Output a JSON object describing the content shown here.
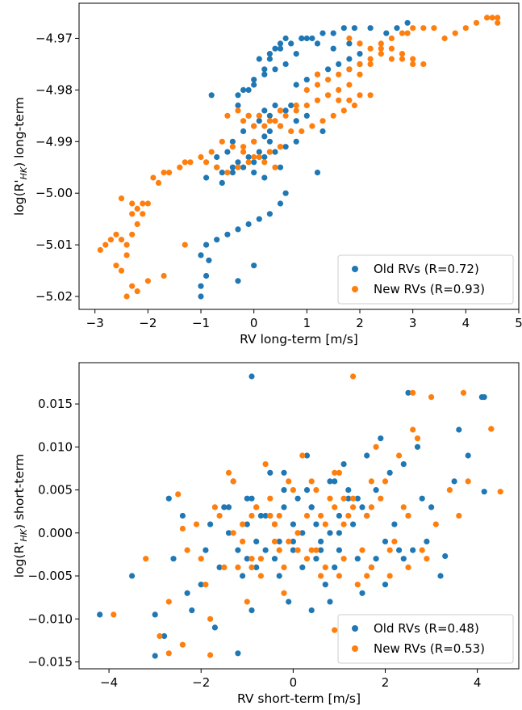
{
  "chart_data": [
    {
      "type": "scatter",
      "xlabel": "RV long-term [m/s]",
      "ylabel_main": "log(R'",
      "ylabel_sub": "HK",
      "ylabel_end": ") long-term",
      "xlim": [
        -3.3,
        5.0
      ],
      "ylim": [
        -5.0225,
        -4.9632
      ],
      "xticks": [
        -3,
        -2,
        -1,
        0,
        1,
        2,
        3,
        4,
        5
      ],
      "yticks": [
        -5.02,
        -5.01,
        -5.0,
        -4.99,
        -4.98,
        -4.97
      ],
      "ytick_decimals": 2,
      "legend": {
        "position": "lower-right"
      },
      "series": [
        {
          "name": "Old RVs (R=0.72)",
          "color": "#1f77b4",
          "x": [
            -1.0,
            -1.0,
            -0.9,
            -0.85,
            -0.9,
            -1.0,
            -0.7,
            -0.5,
            -0.3,
            -0.1,
            0.1,
            0.3,
            0.5,
            0.6,
            -0.2,
            0.0,
            0.2,
            0.4,
            0.6,
            0.8,
            -0.6,
            -0.4,
            -0.3,
            -0.1,
            0.0,
            0.2,
            0.3,
            0.5,
            -0.7,
            -0.9,
            -0.5,
            -0.4,
            -0.2,
            0.0,
            0.1,
            0.3,
            0.5,
            0.7,
            -0.1,
            0.1,
            0.2,
            0.4,
            0.6,
            0.8,
            1.0,
            1.3,
            -0.3,
            -0.2,
            0.0,
            0.2,
            0.4,
            0.6,
            0.8,
            0.5,
            0.6,
            0.4,
            0.3,
            0.2,
            0.0,
            -0.1,
            0.1,
            0.3,
            0.5,
            0.7,
            0.9,
            1.1,
            1.3,
            1.5,
            1.7,
            1.9,
            2.2,
            2.5,
            2.7,
            2.9,
            0.8,
            1.0,
            1.2,
            1.4,
            1.6,
            1.8,
            2.0,
            1.8,
            2.0,
            1.5,
            1.2,
            1.0,
            0.9,
            0.3,
            0.1,
            -0.4,
            -0.6,
            0.0,
            -0.8,
            -0.3,
            -0.7,
            0.5,
            0.2,
            1.2,
            0.0,
            -0.3,
            1.8
          ],
          "y": [
            -5.02,
            -5.018,
            -5.016,
            -5.013,
            -5.01,
            -5.012,
            -5.009,
            -5.008,
            -5.007,
            -5.006,
            -5.005,
            -5.004,
            -5.002,
            -5.0,
            -4.995,
            -4.994,
            -4.993,
            -4.992,
            -4.991,
            -4.99,
            -4.996,
            -4.995,
            -4.994,
            -4.993,
            -4.99,
            -4.989,
            -4.988,
            -4.987,
            -4.995,
            -4.997,
            -4.992,
            -4.99,
            -4.988,
            -4.987,
            -4.986,
            -4.985,
            -4.984,
            -4.983,
            -4.985,
            -4.985,
            -4.984,
            -4.983,
            -4.984,
            -4.986,
            -4.985,
            -4.988,
            -4.981,
            -4.98,
            -4.979,
            -4.977,
            -4.976,
            -4.975,
            -4.973,
            -4.971,
            -4.97,
            -4.972,
            -4.974,
            -4.976,
            -4.978,
            -4.98,
            -4.974,
            -4.973,
            -4.972,
            -4.971,
            -4.97,
            -4.97,
            -4.969,
            -4.969,
            -4.968,
            -4.968,
            -4.968,
            -4.969,
            -4.968,
            -4.967,
            -4.979,
            -4.978,
            -4.977,
            -4.976,
            -4.975,
            -4.974,
            -4.973,
            -4.976,
            -4.975,
            -4.972,
            -4.971,
            -4.97,
            -4.97,
            -4.99,
            -4.992,
            -4.996,
            -4.998,
            -4.996,
            -4.981,
            -4.983,
            -4.993,
            -4.995,
            -4.997,
            -4.996,
            -5.014,
            -5.017,
            -4.971
          ]
        },
        {
          "name": "New RVs (R=0.93)",
          "color": "#ff7f0e",
          "x": [
            -2.9,
            -2.8,
            -2.7,
            -2.6,
            -2.5,
            -2.4,
            -2.3,
            -2.2,
            -2.3,
            -2.2,
            -2.1,
            -2.0,
            -2.1,
            -2.3,
            -2.5,
            -2.4,
            -2.5,
            -2.3,
            -2.6,
            -2.4,
            -2.2,
            -2.0,
            -1.8,
            -1.9,
            -1.7,
            -1.4,
            -1.2,
            -1.0,
            -1.3,
            -1.6,
            -0.8,
            -0.6,
            -0.4,
            -0.2,
            0.0,
            0.2,
            0.4,
            -0.9,
            -0.7,
            -0.5,
            -0.3,
            -0.1,
            0.1,
            0.3,
            0.5,
            -0.5,
            -0.3,
            -0.1,
            0.1,
            0.3,
            0.5,
            0.7,
            0.9,
            1.1,
            1.3,
            1.5,
            1.7,
            1.9,
            -0.2,
            0.0,
            0.2,
            0.4,
            0.6,
            0.8,
            1.0,
            1.2,
            1.4,
            1.6,
            1.8,
            2.0,
            2.2,
            2.4,
            2.6,
            2.8,
            3.0,
            3.2,
            3.4,
            3.6,
            3.8,
            4.0,
            4.2,
            4.4,
            4.6,
            1.8,
            2.0,
            2.2,
            2.4,
            2.6,
            2.8,
            3.0,
            3.2,
            1.4,
            1.6,
            1.8,
            2.0,
            2.2,
            1.0,
            1.2,
            1.4,
            1.6,
            1.8,
            2.0,
            2.2,
            2.0,
            2.4,
            2.6,
            2.8,
            3.0,
            0.0,
            -0.2,
            0.3,
            0.5,
            -1.7,
            -1.3,
            4.6,
            4.5,
            0.8,
            0.5,
            1.2,
            2.9
          ],
          "y": [
            -5.011,
            -5.01,
            -5.009,
            -5.008,
            -5.009,
            -5.01,
            -5.008,
            -5.006,
            -5.004,
            -5.003,
            -5.002,
            -5.002,
            -5.004,
            -5.002,
            -5.001,
            -5.012,
            -5.015,
            -5.018,
            -5.014,
            -5.02,
            -5.019,
            -5.017,
            -4.998,
            -4.997,
            -4.996,
            -4.995,
            -4.994,
            -4.993,
            -4.994,
            -4.996,
            -4.992,
            -4.99,
            -4.991,
            -4.992,
            -4.993,
            -4.994,
            -4.995,
            -4.994,
            -4.995,
            -4.996,
            -4.995,
            -4.994,
            -4.993,
            -4.992,
            -4.991,
            -4.985,
            -4.984,
            -4.985,
            -4.985,
            -4.986,
            -4.987,
            -4.988,
            -4.988,
            -4.987,
            -4.986,
            -4.985,
            -4.984,
            -4.983,
            -4.986,
            -4.987,
            -4.987,
            -4.986,
            -4.985,
            -4.984,
            -4.983,
            -4.982,
            -4.981,
            -4.98,
            -4.979,
            -4.977,
            -4.975,
            -4.972,
            -4.97,
            -4.969,
            -4.968,
            -4.968,
            -4.968,
            -4.97,
            -4.969,
            -4.968,
            -4.967,
            -4.966,
            -4.966,
            -4.97,
            -4.971,
            -4.972,
            -4.973,
            -4.974,
            -4.974,
            -4.975,
            -4.975,
            -4.981,
            -4.982,
            -4.982,
            -4.981,
            -4.981,
            -4.98,
            -4.979,
            -4.978,
            -4.977,
            -4.976,
            -4.975,
            -4.974,
            -4.971,
            -4.971,
            -4.972,
            -4.973,
            -4.974,
            -4.99,
            -4.991,
            -4.992,
            -4.991,
            -5.016,
            -5.01,
            -4.967,
            -4.966,
            -4.983,
            -4.984,
            -4.977,
            -4.969
          ]
        }
      ]
    },
    {
      "type": "scatter",
      "xlabel": "RV short-term [m/s]",
      "ylabel_main": "log(R'",
      "ylabel_sub": "HK",
      "ylabel_end": ") short-term",
      "xlim": [
        -4.65,
        4.9
      ],
      "ylim": [
        -0.0158,
        0.0198
      ],
      "xticks": [
        -4,
        -2,
        0,
        2,
        4
      ],
      "yticks": [
        -0.015,
        -0.01,
        -0.005,
        0.0,
        0.005,
        0.01,
        0.015
      ],
      "ytick_decimals": 3,
      "legend": {
        "position": "lower-right"
      },
      "series": [
        {
          "name": "Old RVs (R=0.48)",
          "color": "#1f77b4",
          "x": [
            -4.2,
            -3.5,
            -3.0,
            -2.8,
            -2.6,
            -2.4,
            -2.2,
            -2.0,
            -1.8,
            -1.6,
            -1.4,
            -1.2,
            -1.0,
            -0.8,
            -0.6,
            -0.4,
            -0.2,
            0.0,
            0.2,
            0.4,
            0.6,
            0.8,
            1.0,
            1.2,
            1.4,
            1.6,
            1.8,
            2.0,
            2.2,
            2.4,
            2.6,
            2.8,
            3.0,
            3.2,
            3.5,
            3.8,
            4.1,
            -1.9,
            -1.5,
            -1.1,
            -0.7,
            -0.3,
            0.1,
            0.5,
            0.9,
            1.3,
            1.7,
            2.1,
            2.5,
            2.9,
            -2.3,
            -1.7,
            -1.3,
            -0.9,
            -0.5,
            -0.1,
            0.3,
            0.7,
            1.1,
            1.5,
            1.9,
            2.3,
            2.7,
            -1.0,
            -0.6,
            -0.2,
            0.2,
            0.6,
            1.0,
            1.4,
            1.8,
            -0.8,
            -0.4,
            0.0,
            0.4,
            0.8,
            1.2,
            -1.4,
            -1.0,
            -0.5,
            0.0,
            0.5,
            1.0,
            1.5,
            2.0,
            -0.9,
            -0.3,
            0.3,
            0.9,
            1.6,
            2.4,
            4.15,
            4.15,
            3.6,
            2.5,
            -1.2,
            -0.9,
            -3.0,
            -2.7,
            0.8,
            1.6,
            3.3,
            -0.2,
            0.4
          ],
          "y": [
            -0.0095,
            -0.005,
            -0.0143,
            -0.012,
            -0.003,
            0.002,
            -0.009,
            -0.006,
            0.001,
            -0.004,
            0.003,
            -0.002,
            0.004,
            -0.001,
            0.002,
            -0.003,
            0.005,
            0.001,
            -0.004,
            0.003,
            -0.002,
            0.006,
            0.0,
            0.004,
            -0.003,
            0.002,
            0.005,
            -0.006,
            0.001,
            0.008,
            -0.002,
            0.004,
            0.003,
            -0.005,
            0.006,
            0.009,
            0.0158,
            -0.002,
            0.003,
            -0.005,
            0.002,
            -0.001,
            0.004,
            -0.003,
            0.006,
            0.001,
            -0.004,
            0.007,
            0.002,
            -0.001,
            -0.007,
            -0.011,
            0.006,
            -0.009,
            0.007,
            -0.008,
            0.009,
            -0.006,
            0.008,
            -0.007,
            0.011,
            -0.002,
            0.01,
            0.001,
            -0.002,
            0.003,
            0.0,
            -0.001,
            0.002,
            0.004,
            -0.003,
            -0.004,
            0.001,
            -0.002,
            0.003,
            0.0,
            0.005,
            0.0,
            -0.003,
            0.002,
            -0.001,
            0.001,
            -0.002,
            0.003,
            -0.001,
            0.004,
            -0.005,
            0.005,
            -0.004,
            0.002,
            -0.003,
            0.0048,
            0.0158,
            0.012,
            0.0163,
            -0.014,
            0.0182,
            -0.0095,
            0.004,
            -0.008,
            0.009,
            -0.0027,
            0.007,
            -0.009
          ],
          "_note": "approximate"
        },
        {
          "name": "New RVs (R=0.53)",
          "color": "#ff7f0e",
          "x": [
            -3.9,
            -3.2,
            -2.9,
            -2.7,
            -2.5,
            -2.3,
            -2.1,
            -1.9,
            -1.7,
            -1.5,
            -1.3,
            -1.1,
            -0.9,
            -0.7,
            -0.5,
            -0.3,
            -0.1,
            0.1,
            0.3,
            0.5,
            0.7,
            0.9,
            1.1,
            1.3,
            1.5,
            1.7,
            1.9,
            2.1,
            2.3,
            2.5,
            2.7,
            2.9,
            3.1,
            3.4,
            3.8,
            4.3,
            4.5,
            -2.0,
            -1.6,
            -1.2,
            -0.8,
            -0.4,
            0.0,
            0.4,
            0.8,
            1.2,
            1.6,
            2.0,
            2.4,
            2.8,
            -2.4,
            -1.8,
            -1.4,
            -1.0,
            -0.6,
            -0.2,
            0.2,
            0.6,
            1.0,
            1.4,
            1.8,
            2.2,
            2.6,
            -1.1,
            -0.7,
            -0.3,
            0.1,
            0.5,
            0.9,
            1.3,
            1.7,
            -0.9,
            -0.5,
            -0.1,
            0.3,
            0.7,
            1.1,
            -1.3,
            -0.9,
            -0.4,
            0.1,
            0.6,
            1.1,
            1.6,
            2.1,
            -0.8,
            -0.2,
            0.4,
            1.0,
            1.7,
            2.5,
            4.3,
            3.7,
            2.6,
            1.3,
            -2.7,
            -2.4,
            -1.8,
            0.9,
            3.6,
            3.0
          ],
          "y": [
            -0.0095,
            -0.003,
            -0.012,
            -0.008,
            0.0045,
            -0.002,
            0.001,
            -0.006,
            0.003,
            -0.004,
            0.006,
            -0.001,
            0.002,
            -0.005,
            0.004,
            -0.002,
            0.006,
            0.0,
            -0.003,
            0.005,
            -0.004,
            0.007,
            0.001,
            0.003,
            -0.002,
            0.006,
            0.004,
            -0.005,
            0.009,
            0.002,
            0.011,
            -0.003,
            0.001,
            0.005,
            0.006,
            0.0121,
            0.0048,
            -0.003,
            0.002,
            -0.004,
            0.003,
            -0.001,
            0.005,
            -0.002,
            0.004,
            0.002,
            -0.005,
            0.006,
            0.003,
            -0.002,
            -0.013,
            -0.01,
            0.007,
            -0.008,
            0.008,
            -0.007,
            0.009,
            -0.005,
            0.007,
            -0.006,
            0.01,
            -0.001,
            0.012,
            0.001,
            -0.003,
            0.002,
            0.0,
            -0.002,
            0.003,
            0.004,
            -0.004,
            -0.003,
            0.002,
            -0.001,
            0.002,
            0.001,
            0.004,
            0.0,
            -0.004,
            0.001,
            -0.002,
            0.002,
            -0.003,
            0.002,
            -0.002,
            0.003,
            -0.004,
            0.006,
            -0.005,
            0.003,
            -0.004,
            0.0121,
            0.0163,
            0.0163,
            0.0182,
            -0.014,
            0.0005,
            -0.0142,
            -0.0113,
            0.002,
            0.0158
          ]
        }
      ]
    }
  ]
}
